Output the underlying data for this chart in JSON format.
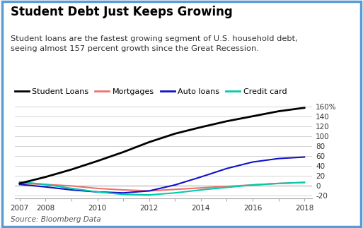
{
  "title": "Student Debt Just Keeps Growing",
  "subtitle": "Student loans are the fastest growing segment of U.S. household debt,\nseeing almost 157 percent growth since the Great Recession.",
  "source": "Source: Bloomberg Data",
  "x_years": [
    2007,
    2008,
    2009,
    2010,
    2011,
    2012,
    2013,
    2014,
    2015,
    2016,
    2017,
    2018
  ],
  "student_loans": [
    5,
    18,
    33,
    50,
    68,
    88,
    105,
    118,
    130,
    140,
    150,
    157
  ],
  "mortgages": [
    5,
    3,
    0,
    -5,
    -8,
    -10,
    -7,
    -4,
    -1,
    2,
    5,
    7
  ],
  "auto_loans": [
    3,
    -2,
    -8,
    -12,
    -14,
    -10,
    2,
    18,
    35,
    48,
    55,
    58
  ],
  "credit_card": [
    8,
    3,
    -5,
    -12,
    -17,
    -18,
    -14,
    -8,
    -3,
    2,
    5,
    7
  ],
  "student_loans_color": "#000000",
  "mortgages_color": "#f07070",
  "auto_loans_color": "#1010cc",
  "credit_card_color": "#00ccaa",
  "xlim_min": 2007,
  "xlim_max": 2018,
  "ylim_min": -25,
  "ylim_max": 172,
  "yticks": [
    -20,
    0,
    20,
    40,
    60,
    80,
    100,
    120,
    140,
    160
  ],
  "ytick_labels": [
    "-20",
    "0",
    "20",
    "40",
    "60",
    "80",
    "100",
    "120",
    "140",
    "160%"
  ],
  "xtick_labels": [
    "2007",
    "2008",
    "",
    "2010",
    "",
    "2012",
    "",
    "2014",
    "",
    "2016",
    "",
    "2018"
  ],
  "legend_labels": [
    "Student Loans",
    "Mortgages",
    "Auto loans",
    "Credit card"
  ],
  "background_color": "#ffffff",
  "border_color": "#5b9bd5",
  "grid_color": "#cccccc",
  "title_fontsize": 12,
  "subtitle_fontsize": 8.2,
  "legend_fontsize": 8,
  "tick_fontsize": 7.5,
  "source_fontsize": 7.5
}
